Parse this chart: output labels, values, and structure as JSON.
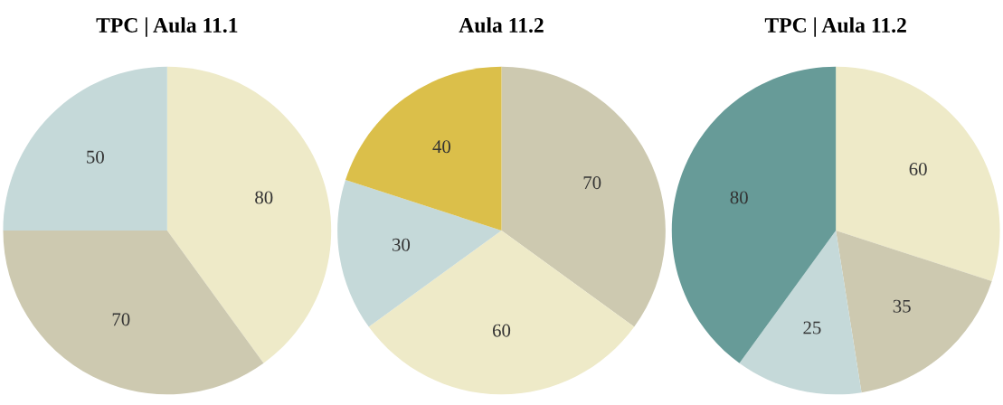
{
  "chart_data": [
    {
      "type": "pie",
      "title": "TPC | Aula 11.1",
      "categories": [
        null,
        null,
        null
      ],
      "values": [
        80,
        70,
        50
      ],
      "colors": [
        "#eeeac8",
        "#cdc9b0",
        "#c5d9d9"
      ],
      "data_labels": true
    },
    {
      "type": "pie",
      "title": "Aula 11.2",
      "categories": [
        null,
        null,
        null,
        null
      ],
      "values": [
        70,
        60,
        30,
        40
      ],
      "colors": [
        "#cdc9b0",
        "#eeeac8",
        "#c5d9d9",
        "#dbbf4a"
      ],
      "data_labels": true
    },
    {
      "type": "pie",
      "title": "TPC | Aula 11.2",
      "categories": [
        null,
        null,
        null,
        null
      ],
      "values": [
        60,
        35,
        25,
        80
      ],
      "colors": [
        "#eeeac8",
        "#cdc9b0",
        "#c5d9d9",
        "#679b98"
      ],
      "data_labels": true
    }
  ]
}
